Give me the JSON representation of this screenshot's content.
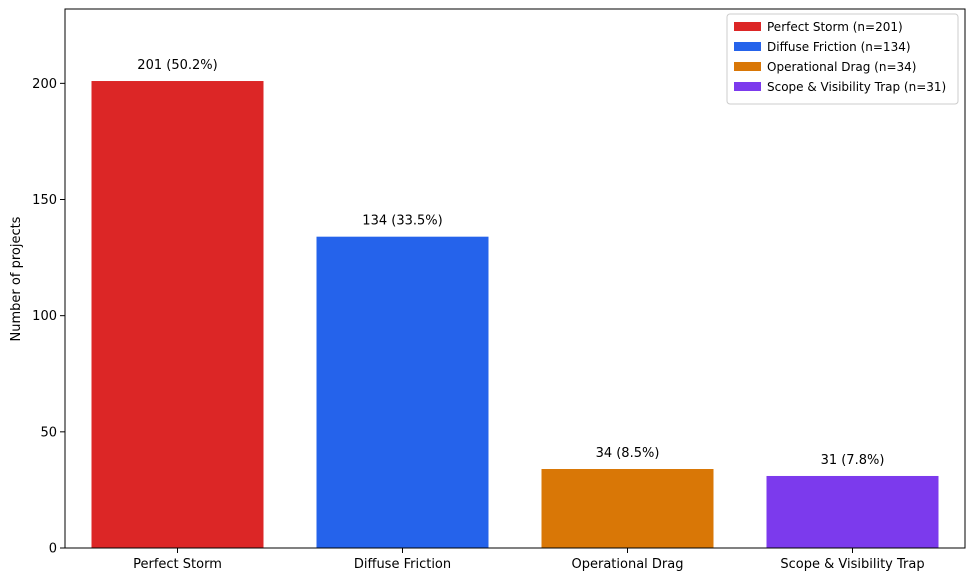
{
  "chart_data": {
    "type": "bar",
    "title": "",
    "xlabel": "",
    "ylabel": "Number of projects",
    "ylim": [
      0,
      232
    ],
    "yticks": [
      0,
      50,
      100,
      150,
      200
    ],
    "grid": false,
    "legend_position": "top-right",
    "categories": [
      "Perfect Storm",
      "Diffuse Friction",
      "Operational Drag",
      "Scope & Visibility Trap"
    ],
    "values": [
      201,
      134,
      34,
      31
    ],
    "value_labels": [
      "201  (50.2%)",
      "134  (33.5%)",
      "34  (8.5%)",
      "31  (7.8%)"
    ],
    "colors": [
      "#dc2626",
      "#2563eb",
      "#d97706",
      "#7c3aed"
    ],
    "legend": [
      "Perfect Storm  (n=201)",
      "Diffuse Friction  (n=134)",
      "Operational Drag  (n=34)",
      "Scope & Visibility Trap  (n=31)"
    ]
  }
}
